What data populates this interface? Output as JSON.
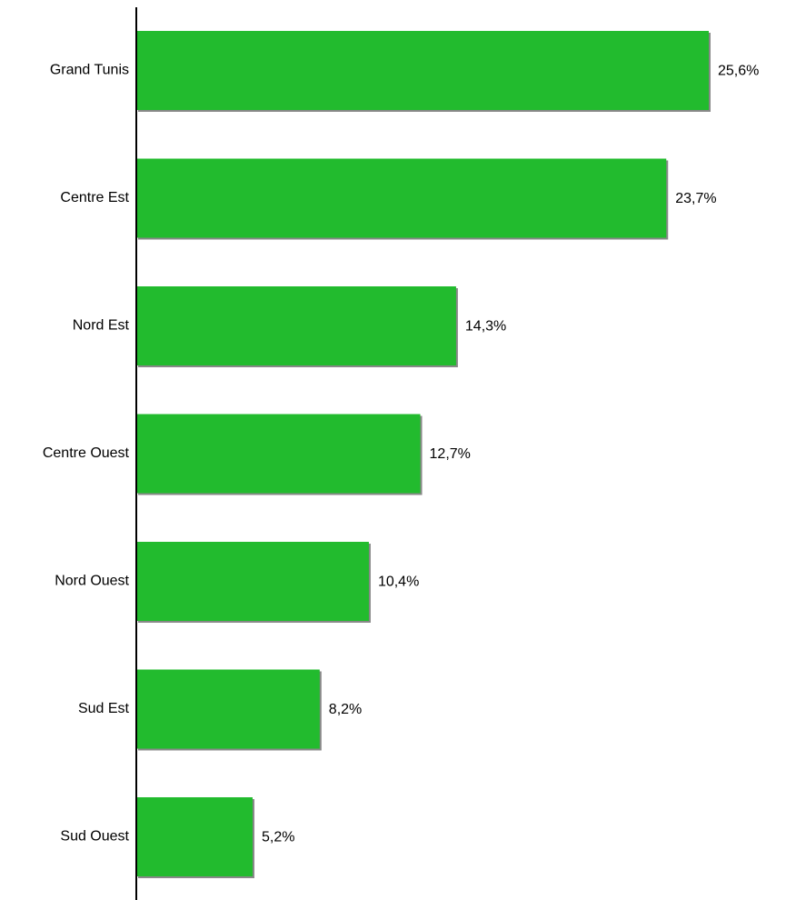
{
  "chart_data": {
    "type": "bar",
    "orientation": "horizontal",
    "categories": [
      "Grand Tunis",
      "Centre Est",
      "Nord Est",
      "Centre Ouest",
      "Nord Ouest",
      "Sud Est",
      "Sud Ouest"
    ],
    "values": [
      25.6,
      23.7,
      14.3,
      12.7,
      10.4,
      8.2,
      5.2
    ],
    "value_labels": [
      "25,6%",
      "23,7%",
      "14,3%",
      "12,7%",
      "10,4%",
      "8,2%",
      "5,2%"
    ],
    "unit": "%",
    "title": "",
    "xlabel": "",
    "ylabel": "",
    "xlim": [
      0,
      27
    ],
    "grid": false,
    "legend": "none",
    "colors": {
      "bar": "#22bb2e",
      "bar_shadow": "#888888",
      "axis": "#000000",
      "text": "#000000"
    }
  }
}
